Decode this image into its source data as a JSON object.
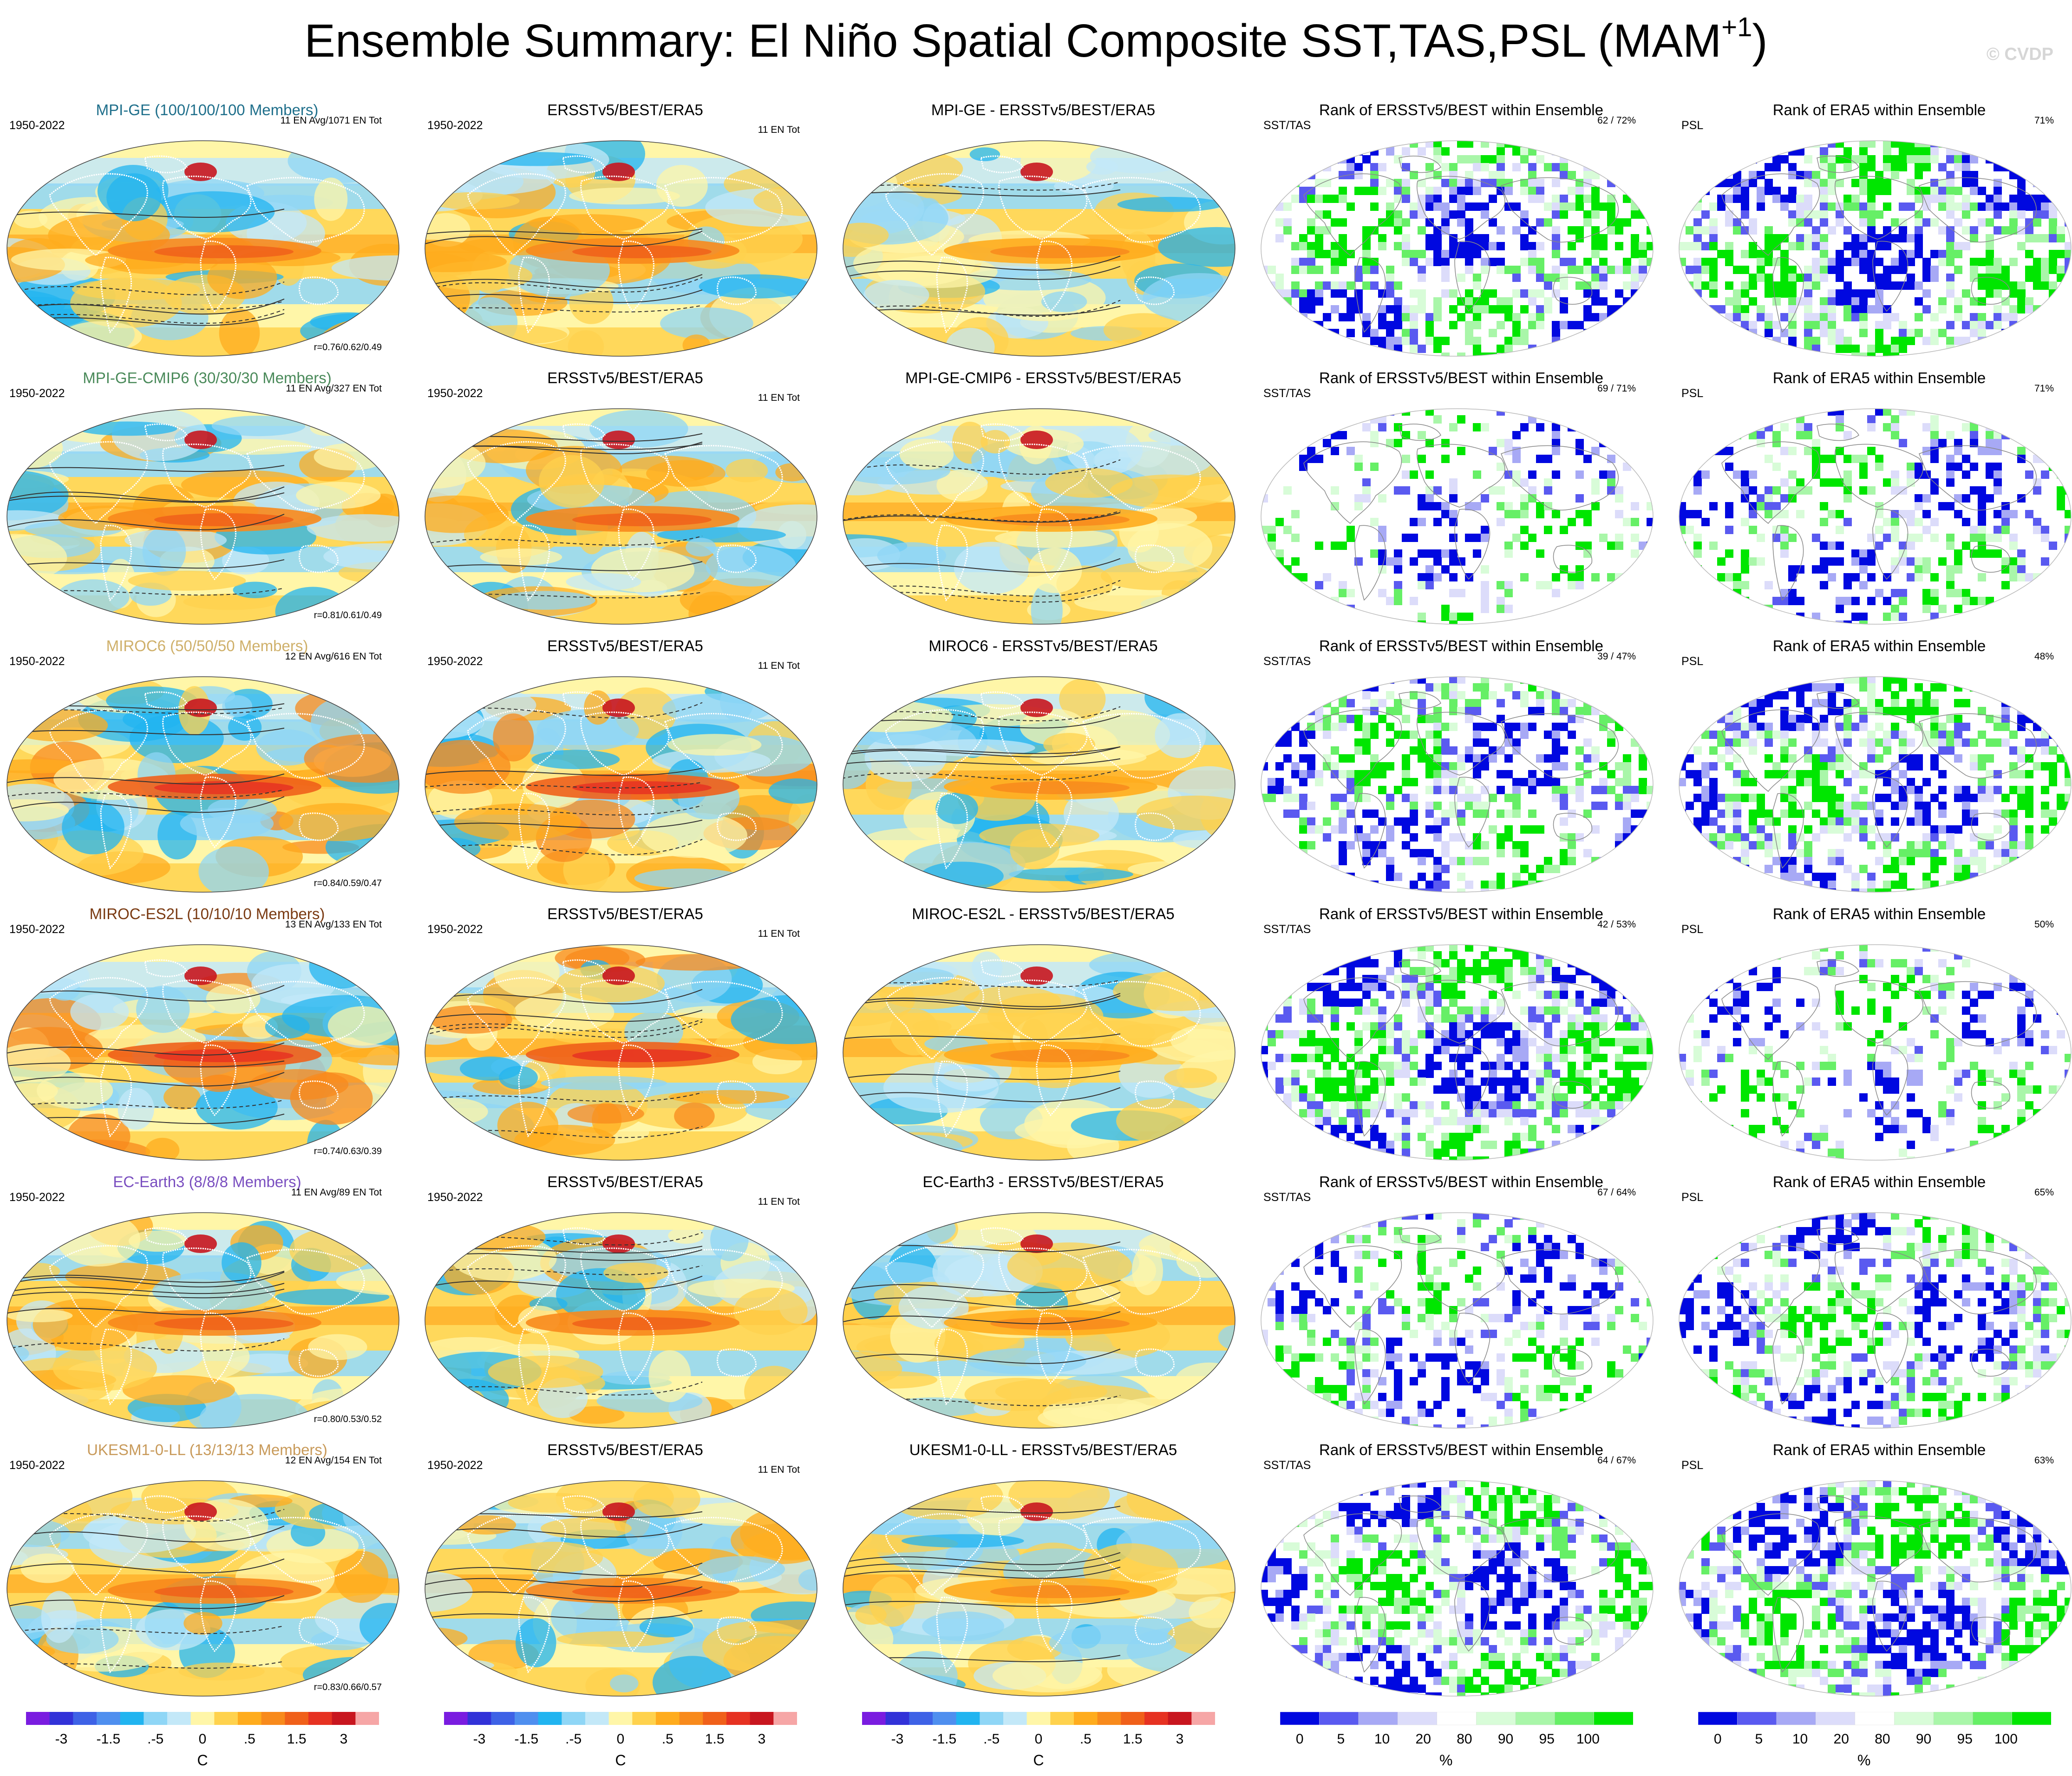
{
  "title": {
    "main": "Ensemble Summary: El Niño Spatial Composite SST,TAS,PSL (MAM",
    "sup": "+1",
    "close": ")"
  },
  "credit": "© CVDP",
  "colors": {
    "diverging": [
      "#7a1ce0",
      "#3232d8",
      "#3e62e6",
      "#4f8fef",
      "#21b4f0",
      "#8fd6f6",
      "#c3e8f8",
      "#fff6a8",
      "#ffd24d",
      "#ffac1d",
      "#f88a1c",
      "#f0601a",
      "#e63222",
      "#c8161f",
      "#f6a6a6"
    ],
    "rank": [
      "#0008e0",
      "#5a5af0",
      "#a7a9f5",
      "#dcdcfa",
      "#ffffff",
      "#d8fcd8",
      "#a9f6a9",
      "#66ef66",
      "#00e600"
    ],
    "model_title_colors": [
      "#1f6f8b",
      "#4a8a5a",
      "#cfb06a",
      "#7a3a12",
      "#7a4fc0",
      "#c89a5a"
    ]
  },
  "colorbars": [
    {
      "labels": [
        "-3",
        "-1.5",
        ".-5",
        "0",
        ".5",
        "1.5",
        "3"
      ],
      "unit": "C"
    },
    {
      "labels": [
        "-3",
        "-1.5",
        ".-5",
        "0",
        ".5",
        "1.5",
        "3"
      ],
      "unit": "C"
    },
    {
      "labels": [
        "-3",
        "-1.5",
        ".-5",
        "0",
        ".5",
        "1.5",
        "3"
      ],
      "unit": "C"
    },
    {
      "labels": [
        "0",
        "5",
        "10",
        "20",
        "80",
        "90",
        "95",
        "100"
      ],
      "unit": "%"
    },
    {
      "labels": [
        "0",
        "5",
        "10",
        "20",
        "80",
        "90",
        "95",
        "100"
      ],
      "unit": "%"
    }
  ],
  "rows": [
    {
      "model": {
        "title": "MPI-GE (100/100/100 Members)",
        "period": "1950-2022",
        "ens": "11 EN Avg/1071 EN Tot",
        "corr": "r=0.76/0.62/0.49"
      },
      "obs": {
        "title": "ERSSTv5/BEST/ERA5",
        "period": "1950-2022",
        "ens": "11 EN Tot"
      },
      "diff": {
        "title": "MPI-GE - ERSSTv5/BEST/ERA5"
      },
      "rank1": {
        "title": "Rank of ERSSTv5/BEST within Ensemble",
        "var": "SST/TAS",
        "pct": "62 /  72%"
      },
      "rank2": {
        "title": "Rank of ERA5 within Ensemble",
        "var": "PSL",
        "pct": "71%"
      }
    },
    {
      "model": {
        "title": "MPI-GE-CMIP6 (30/30/30 Members)",
        "period": "1950-2022",
        "ens": "11 EN Avg/327 EN Tot",
        "corr": "r=0.81/0.61/0.49"
      },
      "obs": {
        "title": "ERSSTv5/BEST/ERA5",
        "period": "1950-2022",
        "ens": "11 EN Tot"
      },
      "diff": {
        "title": "MPI-GE-CMIP6 - ERSSTv5/BEST/ERA5"
      },
      "rank1": {
        "title": "Rank of ERSSTv5/BEST within Ensemble",
        "var": "SST/TAS",
        "pct": "69 /  71%"
      },
      "rank2": {
        "title": "Rank of ERA5 within Ensemble",
        "var": "PSL",
        "pct": "71%"
      }
    },
    {
      "model": {
        "title": "MIROC6 (50/50/50 Members)",
        "period": "1950-2022",
        "ens": "12 EN Avg/616 EN Tot",
        "corr": "r=0.84/0.59/0.47"
      },
      "obs": {
        "title": "ERSSTv5/BEST/ERA5",
        "period": "1950-2022",
        "ens": "11 EN Tot"
      },
      "diff": {
        "title": "MIROC6 - ERSSTv5/BEST/ERA5"
      },
      "rank1": {
        "title": "Rank of ERSSTv5/BEST within Ensemble",
        "var": "SST/TAS",
        "pct": "39 /  47%"
      },
      "rank2": {
        "title": "Rank of ERA5 within Ensemble",
        "var": "PSL",
        "pct": "48%"
      }
    },
    {
      "model": {
        "title": "MIROC-ES2L (10/10/10 Members)",
        "period": "1950-2022",
        "ens": "13 EN Avg/133 EN Tot",
        "corr": "r=0.74/0.63/0.39"
      },
      "obs": {
        "title": "ERSSTv5/BEST/ERA5",
        "period": "1950-2022",
        "ens": "11 EN Tot"
      },
      "diff": {
        "title": "MIROC-ES2L - ERSSTv5/BEST/ERA5"
      },
      "rank1": {
        "title": "Rank of ERSSTv5/BEST within Ensemble",
        "var": "SST/TAS",
        "pct": "42 /  53%"
      },
      "rank2": {
        "title": "Rank of ERA5 within Ensemble",
        "var": "PSL",
        "pct": "50%"
      }
    },
    {
      "model": {
        "title": "EC-Earth3 (8/8/8 Members)",
        "period": "1950-2022",
        "ens": "11 EN Avg/89 EN Tot",
        "corr": "r=0.80/0.53/0.52"
      },
      "obs": {
        "title": "ERSSTv5/BEST/ERA5",
        "period": "1950-2022",
        "ens": "11 EN Tot"
      },
      "diff": {
        "title": "EC-Earth3 - ERSSTv5/BEST/ERA5"
      },
      "rank1": {
        "title": "Rank of ERSSTv5/BEST within Ensemble",
        "var": "SST/TAS",
        "pct": "67 /  64%"
      },
      "rank2": {
        "title": "Rank of ERA5 within Ensemble",
        "var": "PSL",
        "pct": "65%"
      }
    },
    {
      "model": {
        "title": "UKESM1-0-LL (13/13/13 Members)",
        "period": "1950-2022",
        "ens": "12 EN Avg/154 EN Tot",
        "corr": "r=0.83/0.66/0.57"
      },
      "obs": {
        "title": "ERSSTv5/BEST/ERA5",
        "period": "1950-2022",
        "ens": "11 EN Tot"
      },
      "diff": {
        "title": "UKESM1-0-LL - ERSSTv5/BEST/ERA5"
      },
      "rank1": {
        "title": "Rank of ERSSTv5/BEST within Ensemble",
        "var": "SST/TAS",
        "pct": "64 /  67%"
      },
      "rank2": {
        "title": "Rank of ERA5 within Ensemble",
        "var": "PSL",
        "pct": "63%"
      }
    }
  ]
}
